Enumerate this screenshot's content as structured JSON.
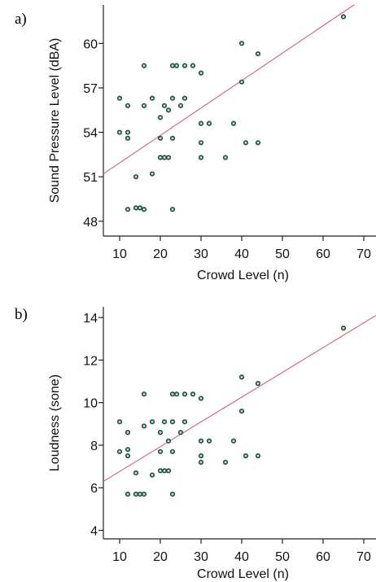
{
  "chart_data": [
    {
      "type": "scatter",
      "panel_label": "a)",
      "xlabel": "Crowd Level (n)",
      "ylabel": "Sound Pressure Level (dBA)",
      "xlim": [
        6,
        73
      ],
      "ylim": [
        47,
        62.6
      ],
      "xticks": [
        10,
        20,
        30,
        40,
        50,
        60,
        70
      ],
      "yticks": [
        48,
        51,
        54,
        57,
        60
      ],
      "grid": false,
      "fit_line": {
        "x": [
          6,
          73
        ],
        "y": [
          51.2,
          63.6
        ]
      },
      "points": [
        [
          10,
          56.3
        ],
        [
          10,
          54.0
        ],
        [
          12,
          55.8
        ],
        [
          12,
          54.0
        ],
        [
          12,
          53.6
        ],
        [
          12,
          48.8
        ],
        [
          14,
          51.0
        ],
        [
          14,
          48.9
        ],
        [
          15,
          48.9
        ],
        [
          16,
          48.8
        ],
        [
          16,
          55.8
        ],
        [
          16,
          58.5
        ],
        [
          18,
          56.3
        ],
        [
          18,
          51.2
        ],
        [
          20,
          53.6
        ],
        [
          20,
          55.0
        ],
        [
          20,
          52.3
        ],
        [
          21,
          55.8
        ],
        [
          21,
          52.3
        ],
        [
          22,
          55.5
        ],
        [
          22,
          52.3
        ],
        [
          23,
          53.6
        ],
        [
          23,
          56.3
        ],
        [
          23,
          58.5
        ],
        [
          23,
          48.8
        ],
        [
          24,
          58.5
        ],
        [
          25,
          55.8
        ],
        [
          26,
          58.5
        ],
        [
          26,
          56.3
        ],
        [
          28,
          58.5
        ],
        [
          30,
          58.0
        ],
        [
          30,
          54.6
        ],
        [
          30,
          53.3
        ],
        [
          30,
          52.3
        ],
        [
          32,
          54.6
        ],
        [
          36,
          52.3
        ],
        [
          38,
          54.6
        ],
        [
          40,
          60.0
        ],
        [
          40,
          57.4
        ],
        [
          41,
          53.3
        ],
        [
          44,
          59.3
        ],
        [
          44,
          53.3
        ],
        [
          65,
          61.8
        ]
      ]
    },
    {
      "type": "scatter",
      "panel_label": "b)",
      "xlabel": "Crowd Level (n)",
      "ylabel": "Loudness (sone)",
      "xlim": [
        6,
        73
      ],
      "ylim": [
        3.6,
        14.5
      ],
      "xticks": [
        10,
        20,
        30,
        40,
        50,
        60,
        70
      ],
      "yticks": [
        4,
        6,
        8,
        10,
        12,
        14
      ],
      "grid": false,
      "fit_line": {
        "x": [
          6,
          73
        ],
        "y": [
          6.3,
          14.1
        ]
      },
      "points": [
        [
          10,
          9.1
        ],
        [
          10,
          7.7
        ],
        [
          12,
          8.6
        ],
        [
          12,
          7.8
        ],
        [
          12,
          7.5
        ],
        [
          12,
          5.7
        ],
        [
          14,
          6.7
        ],
        [
          14,
          5.7
        ],
        [
          15,
          5.7
        ],
        [
          16,
          5.7
        ],
        [
          16,
          8.9
        ],
        [
          16,
          10.4
        ],
        [
          18,
          9.1
        ],
        [
          18,
          6.6
        ],
        [
          20,
          7.7
        ],
        [
          20,
          8.6
        ],
        [
          20,
          6.8
        ],
        [
          21,
          9.1
        ],
        [
          21,
          6.8
        ],
        [
          22,
          8.2
        ],
        [
          22,
          6.8
        ],
        [
          23,
          7.7
        ],
        [
          23,
          9.1
        ],
        [
          23,
          10.4
        ],
        [
          23,
          5.7
        ],
        [
          24,
          10.4
        ],
        [
          25,
          8.6
        ],
        [
          26,
          10.4
        ],
        [
          26,
          9.1
        ],
        [
          28,
          10.4
        ],
        [
          30,
          10.2
        ],
        [
          30,
          8.2
        ],
        [
          30,
          7.5
        ],
        [
          30,
          7.2
        ],
        [
          32,
          8.2
        ],
        [
          36,
          7.2
        ],
        [
          38,
          8.2
        ],
        [
          40,
          11.2
        ],
        [
          40,
          9.6
        ],
        [
          41,
          7.5
        ],
        [
          44,
          10.9
        ],
        [
          44,
          7.5
        ],
        [
          65,
          13.5
        ]
      ]
    }
  ]
}
